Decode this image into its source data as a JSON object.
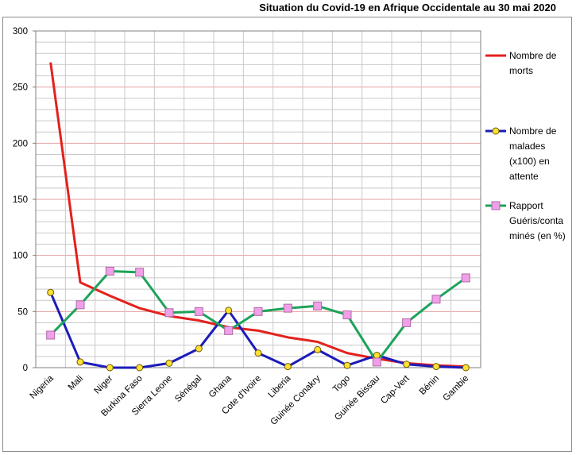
{
  "chart_data": {
    "type": "line",
    "title": "Situation du Covid-19 en Afrique Occidentale au 30 mai 2020",
    "categories": [
      "Nigeria",
      "Mali",
      "Niger",
      "Burkina Faso",
      "Sierra Leone",
      "Sénégal",
      "Ghana",
      "Cote d'Ivoire",
      "Liberia",
      "Guinée Conakry",
      "Togo",
      "Guinée Bissau",
      "Cap-Vert",
      "Bénin",
      "Gambie"
    ],
    "ylim": [
      0,
      300
    ],
    "yticks": [
      0,
      50,
      100,
      150,
      200,
      250,
      300
    ],
    "grid": true,
    "legend_position": "right",
    "series": [
      {
        "name_lines": [
          "Nombre de",
          "morts"
        ],
        "color": "#e3211c",
        "marker": "none",
        "values": [
          272,
          76,
          64,
          53,
          46,
          42,
          36,
          33,
          27,
          23,
          13,
          8,
          4,
          2,
          1
        ]
      },
      {
        "name_lines": [
          "Nombre de",
          "malades",
          "(x100) en",
          "attente"
        ],
        "color": "#1c1cbb",
        "marker": "circle",
        "marker_color": "#ffe033",
        "values": [
          67,
          5,
          0,
          0,
          4,
          17,
          51,
          13,
          1,
          16,
          2,
          11,
          3,
          1,
          0
        ]
      },
      {
        "name_lines": [
          "Rapport",
          "Guéris/conta",
          "minés (en %)"
        ],
        "color": "#1da35a",
        "marker": "square",
        "marker_color": "#f0a0e8",
        "values": [
          29,
          56,
          86,
          85,
          49,
          50,
          33,
          50,
          53,
          55,
          47,
          5,
          40,
          61,
          80
        ]
      }
    ]
  }
}
